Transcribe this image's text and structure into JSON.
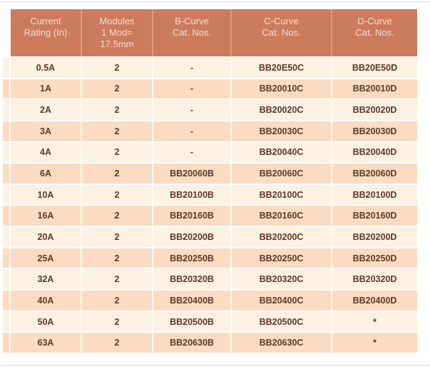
{
  "colors": {
    "header_bg": "#cc7b5d",
    "header_separator": "#de9c7f",
    "header_text": "#f7ddd0",
    "row_light": "#fdf1e2",
    "row_peach": "#fbdcc2",
    "body_text": "#5d392a",
    "page_bg": "#ffffff"
  },
  "table": {
    "headers": [
      "Current\nRating (In)",
      "Modules\n1 Mod=\n17.5mm",
      "B-Curve\nCat. Nos.",
      "C-Curve\nCat. Nos.",
      "D-Curve\nCat. Nos."
    ],
    "rows": [
      [
        "0.5A",
        "2",
        "-",
        "BB20E50C",
        "BB20E50D"
      ],
      [
        "1A",
        "2",
        "-",
        "BB20010C",
        "BB20010D"
      ],
      [
        "2A",
        "2",
        "-",
        "BB20020C",
        "BB20020D"
      ],
      [
        "3A",
        "2",
        "-",
        "BB20030C",
        "BB20030D"
      ],
      [
        "4A",
        "2",
        "-",
        "BB20040C",
        "BB20040D"
      ],
      [
        "6A",
        "2",
        "BB20060B",
        "BB20060C",
        "BB20060D"
      ],
      [
        "10A",
        "2",
        "BB20100B",
        "BB20100C",
        "BB20100D"
      ],
      [
        "16A",
        "2",
        "BB20160B",
        "BB20160C",
        "BB20160D"
      ],
      [
        "20A",
        "2",
        "BB20200B",
        "BB20200C",
        "BB20200D"
      ],
      [
        "25A",
        "2",
        "BB20250B",
        "BB20250C",
        "BB20250D"
      ],
      [
        "32A",
        "2",
        "BB20320B",
        "BB20320C",
        "BB20320D"
      ],
      [
        "40A",
        "2",
        "BB20400B",
        "BB20400C",
        "BB20400D"
      ],
      [
        "50A",
        "2",
        "BB20500B",
        "BB20500C",
        "*"
      ],
      [
        "63A",
        "2",
        "BB20630B",
        "BB20630C",
        "*"
      ]
    ]
  }
}
